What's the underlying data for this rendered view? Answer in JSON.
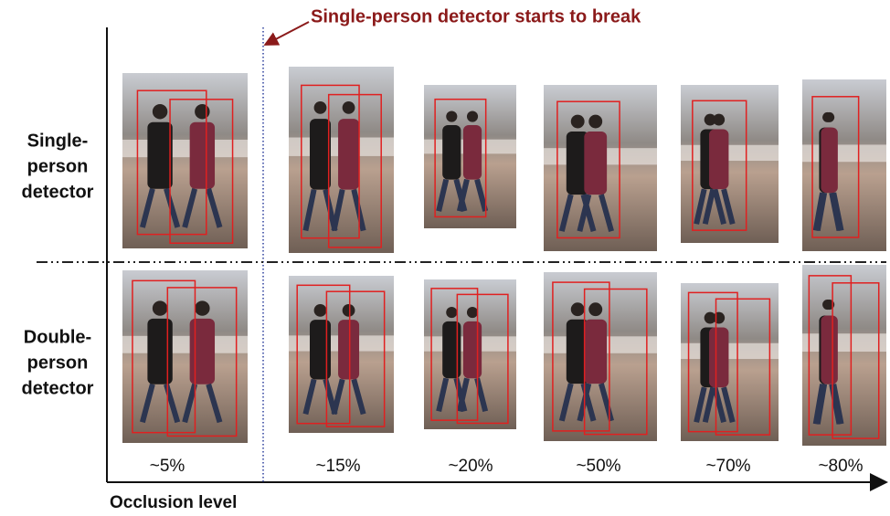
{
  "annotation": "Single-person detector starts to break",
  "rows": [
    {
      "label_lines": [
        "Single-",
        "person",
        "detector"
      ]
    },
    {
      "label_lines": [
        "Double-",
        "person",
        "detector"
      ]
    }
  ],
  "columns": [
    "~5%",
    "~15%",
    "~20%",
    "~50%",
    "~70%",
    "~80%"
  ],
  "x_axis_label": "Occlusion level"
}
